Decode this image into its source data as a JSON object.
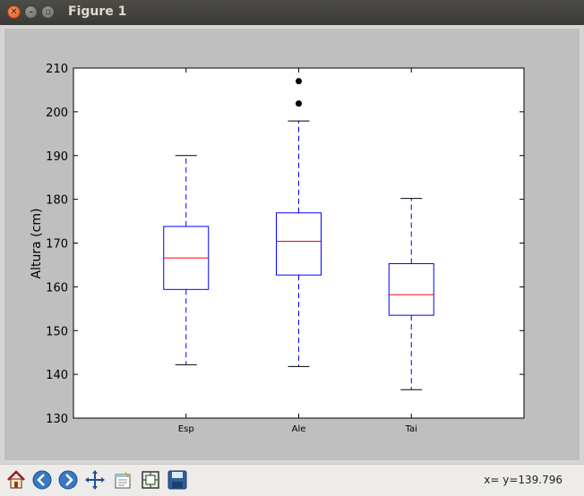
{
  "window": {
    "title": "Figure 1"
  },
  "toolbar": {
    "buttons": [
      "home-icon",
      "back-icon",
      "forward-icon",
      "pan-icon",
      "configure-subplots-icon",
      "zoom-icon",
      "save-icon"
    ],
    "coords": "x= y=139.796"
  },
  "colors": {
    "box": "#0000ff",
    "median": "#ff0000",
    "whisker": "#0000ff",
    "cap": "#000000",
    "flier": "#000000",
    "canvas": "#bfbfbf"
  },
  "chart_data": {
    "type": "box",
    "ylabel": "Altura (cm)",
    "ylim": [
      130,
      210
    ],
    "yticks": [
      130,
      140,
      150,
      160,
      170,
      180,
      190,
      200,
      210
    ],
    "categories": [
      "Esp",
      "Ale",
      "Tai"
    ],
    "boxes": [
      {
        "label": "Esp",
        "whislo": 142.2,
        "q1": 159.4,
        "med": 166.6,
        "q3": 173.8,
        "whishi": 190.0,
        "fliers": []
      },
      {
        "label": "Ale",
        "whislo": 141.8,
        "q1": 162.7,
        "med": 170.4,
        "q3": 176.9,
        "whishi": 197.9,
        "fliers": [
          201.9,
          207.0
        ]
      },
      {
        "label": "Tai",
        "whislo": 136.5,
        "q1": 153.5,
        "med": 158.2,
        "q3": 165.3,
        "whishi": 180.2,
        "fliers": []
      }
    ],
    "grid": false
  }
}
